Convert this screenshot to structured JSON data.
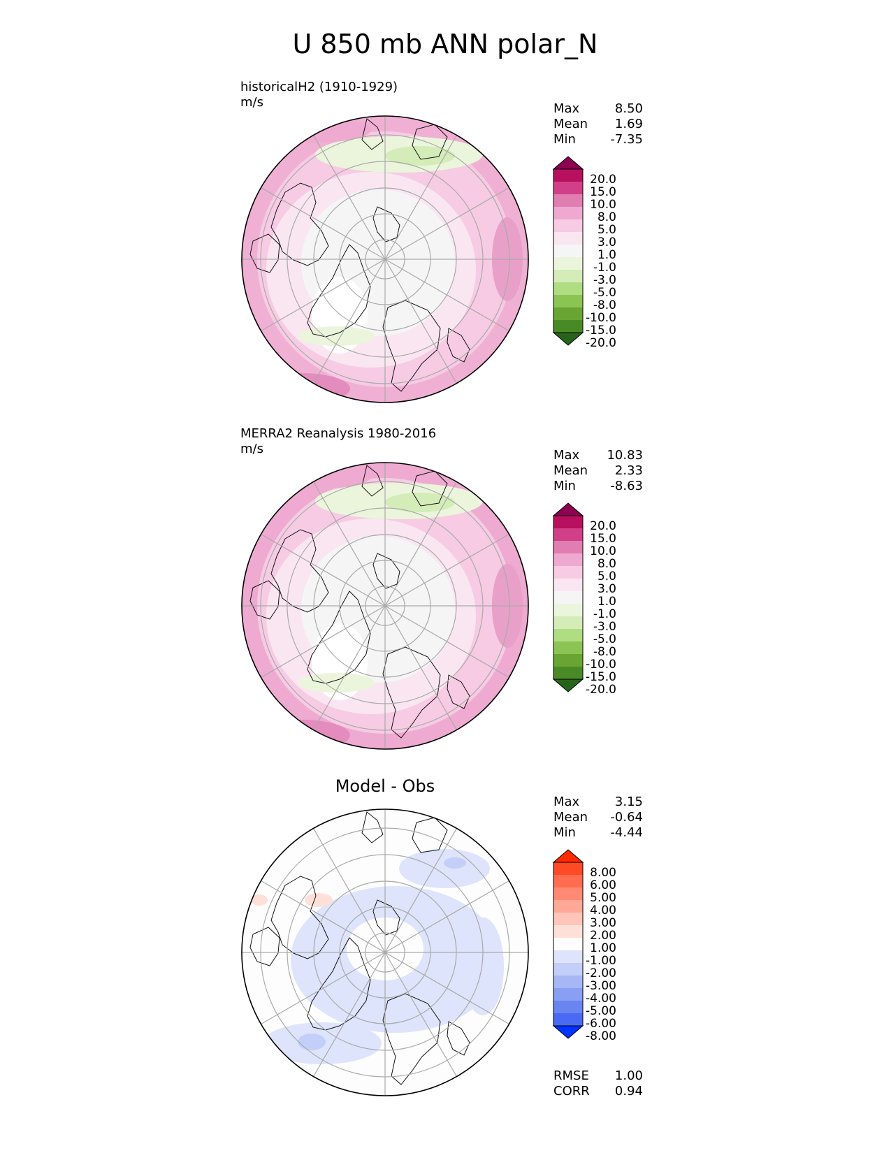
{
  "figure": {
    "title": "U 850 mb ANN polar_N"
  },
  "panels": [
    {
      "id": "test",
      "title_line1": "historicalH2 (1910-1929)",
      "title_line2": "m/s",
      "centered_title": "",
      "stats": [
        {
          "label": "Max",
          "value": "8.50"
        },
        {
          "label": "Mean",
          "value": "1.69"
        },
        {
          "label": "Min",
          "value": "-7.35"
        }
      ],
      "colorbar": {
        "ticks": [
          "20.0",
          "15.0",
          "10.0",
          "8.0",
          "5.0",
          "3.0",
          "1.0",
          "-1.0",
          "-3.0",
          "-5.0",
          "-8.0",
          "-10.0",
          "-15.0",
          "-20.0"
        ],
        "top_color": "#8e0152",
        "bottom_color": "#276419",
        "colors": [
          "#b7105f",
          "#d13f88",
          "#e07eb2",
          "#efa9d0",
          "#f6cbe3",
          "#fae6f1",
          "#f5f5f5",
          "#ebf5dc",
          "#d4ecb8",
          "#b0dc82",
          "#8cc453",
          "#68a533",
          "#4a8a26"
        ]
      },
      "field": "test"
    },
    {
      "id": "ref",
      "title_line1": "MERRA2 Reanalysis 1980-2016",
      "title_line2": "m/s",
      "centered_title": "",
      "stats": [
        {
          "label": "Max",
          "value": "10.83"
        },
        {
          "label": "Mean",
          "value": "2.33"
        },
        {
          "label": "Min",
          "value": "-8.63"
        }
      ],
      "colorbar": {
        "ticks": [
          "20.0",
          "15.0",
          "10.0",
          "8.0",
          "5.0",
          "3.0",
          "1.0",
          "-1.0",
          "-3.0",
          "-5.0",
          "-8.0",
          "-10.0",
          "-15.0",
          "-20.0"
        ],
        "top_color": "#8e0152",
        "bottom_color": "#276419",
        "colors": [
          "#b7105f",
          "#d13f88",
          "#e07eb2",
          "#efa9d0",
          "#f6cbe3",
          "#fae6f1",
          "#f5f5f5",
          "#ebf5dc",
          "#d4ecb8",
          "#b0dc82",
          "#8cc453",
          "#68a533",
          "#4a8a26"
        ]
      },
      "field": "ref"
    },
    {
      "id": "diff",
      "title_line1": "",
      "title_line2": "",
      "centered_title": "Model - Obs",
      "stats": [
        {
          "label": "Max",
          "value": "3.15"
        },
        {
          "label": "Mean",
          "value": "-0.64"
        },
        {
          "label": "Min",
          "value": "-4.44"
        }
      ],
      "extra_stats": [
        {
          "label": "RMSE",
          "value": "1.00"
        },
        {
          "label": "CORR",
          "value": "0.94"
        }
      ],
      "colorbar": {
        "ticks": [
          "8.00",
          "6.00",
          "5.00",
          "4.00",
          "3.00",
          "2.00",
          "1.00",
          "-1.00",
          "-2.00",
          "-3.00",
          "-4.00",
          "-5.00",
          "-6.00",
          "-8.00"
        ],
        "top_color": "#ff2a00",
        "bottom_color": "#0033ff",
        "colors": [
          "#ff4a26",
          "#ff6c4f",
          "#ff8a73",
          "#ffa898",
          "#ffc5b9",
          "#ffe0d8",
          "#fdfdfd",
          "#dde4fb",
          "#c3cff8",
          "#a6b7f5",
          "#889ff2",
          "#6985f0",
          "#4a6af3"
        ]
      },
      "field": "diff"
    }
  ],
  "chart_data": [
    {
      "type": "heatmap",
      "title": "historicalH2 (1910-1929)",
      "units": "m/s",
      "projection": "north polar stereographic",
      "stats": {
        "max": 8.5,
        "mean": 1.69,
        "min": -7.35
      },
      "levels": [
        -20,
        -15,
        -10,
        -8,
        -5,
        -3,
        -1,
        1,
        3,
        5,
        8,
        10,
        15,
        20
      ],
      "extend": "both"
    },
    {
      "type": "heatmap",
      "title": "MERRA2 Reanalysis 1980-2016",
      "units": "m/s",
      "projection": "north polar stereographic",
      "stats": {
        "max": 10.83,
        "mean": 2.33,
        "min": -8.63
      },
      "levels": [
        -20,
        -15,
        -10,
        -8,
        -5,
        -3,
        -1,
        1,
        3,
        5,
        8,
        10,
        15,
        20
      ],
      "extend": "both"
    },
    {
      "type": "heatmap",
      "title": "Model - Obs",
      "projection": "north polar stereographic",
      "stats": {
        "max": 3.15,
        "mean": -0.64,
        "min": -4.44,
        "rmse": 1.0,
        "corr": 0.94
      },
      "levels": [
        -8,
        -6,
        -5,
        -4,
        -3,
        -2,
        -1,
        1,
        2,
        3,
        4,
        5,
        6,
        8
      ],
      "extend": "both"
    }
  ]
}
